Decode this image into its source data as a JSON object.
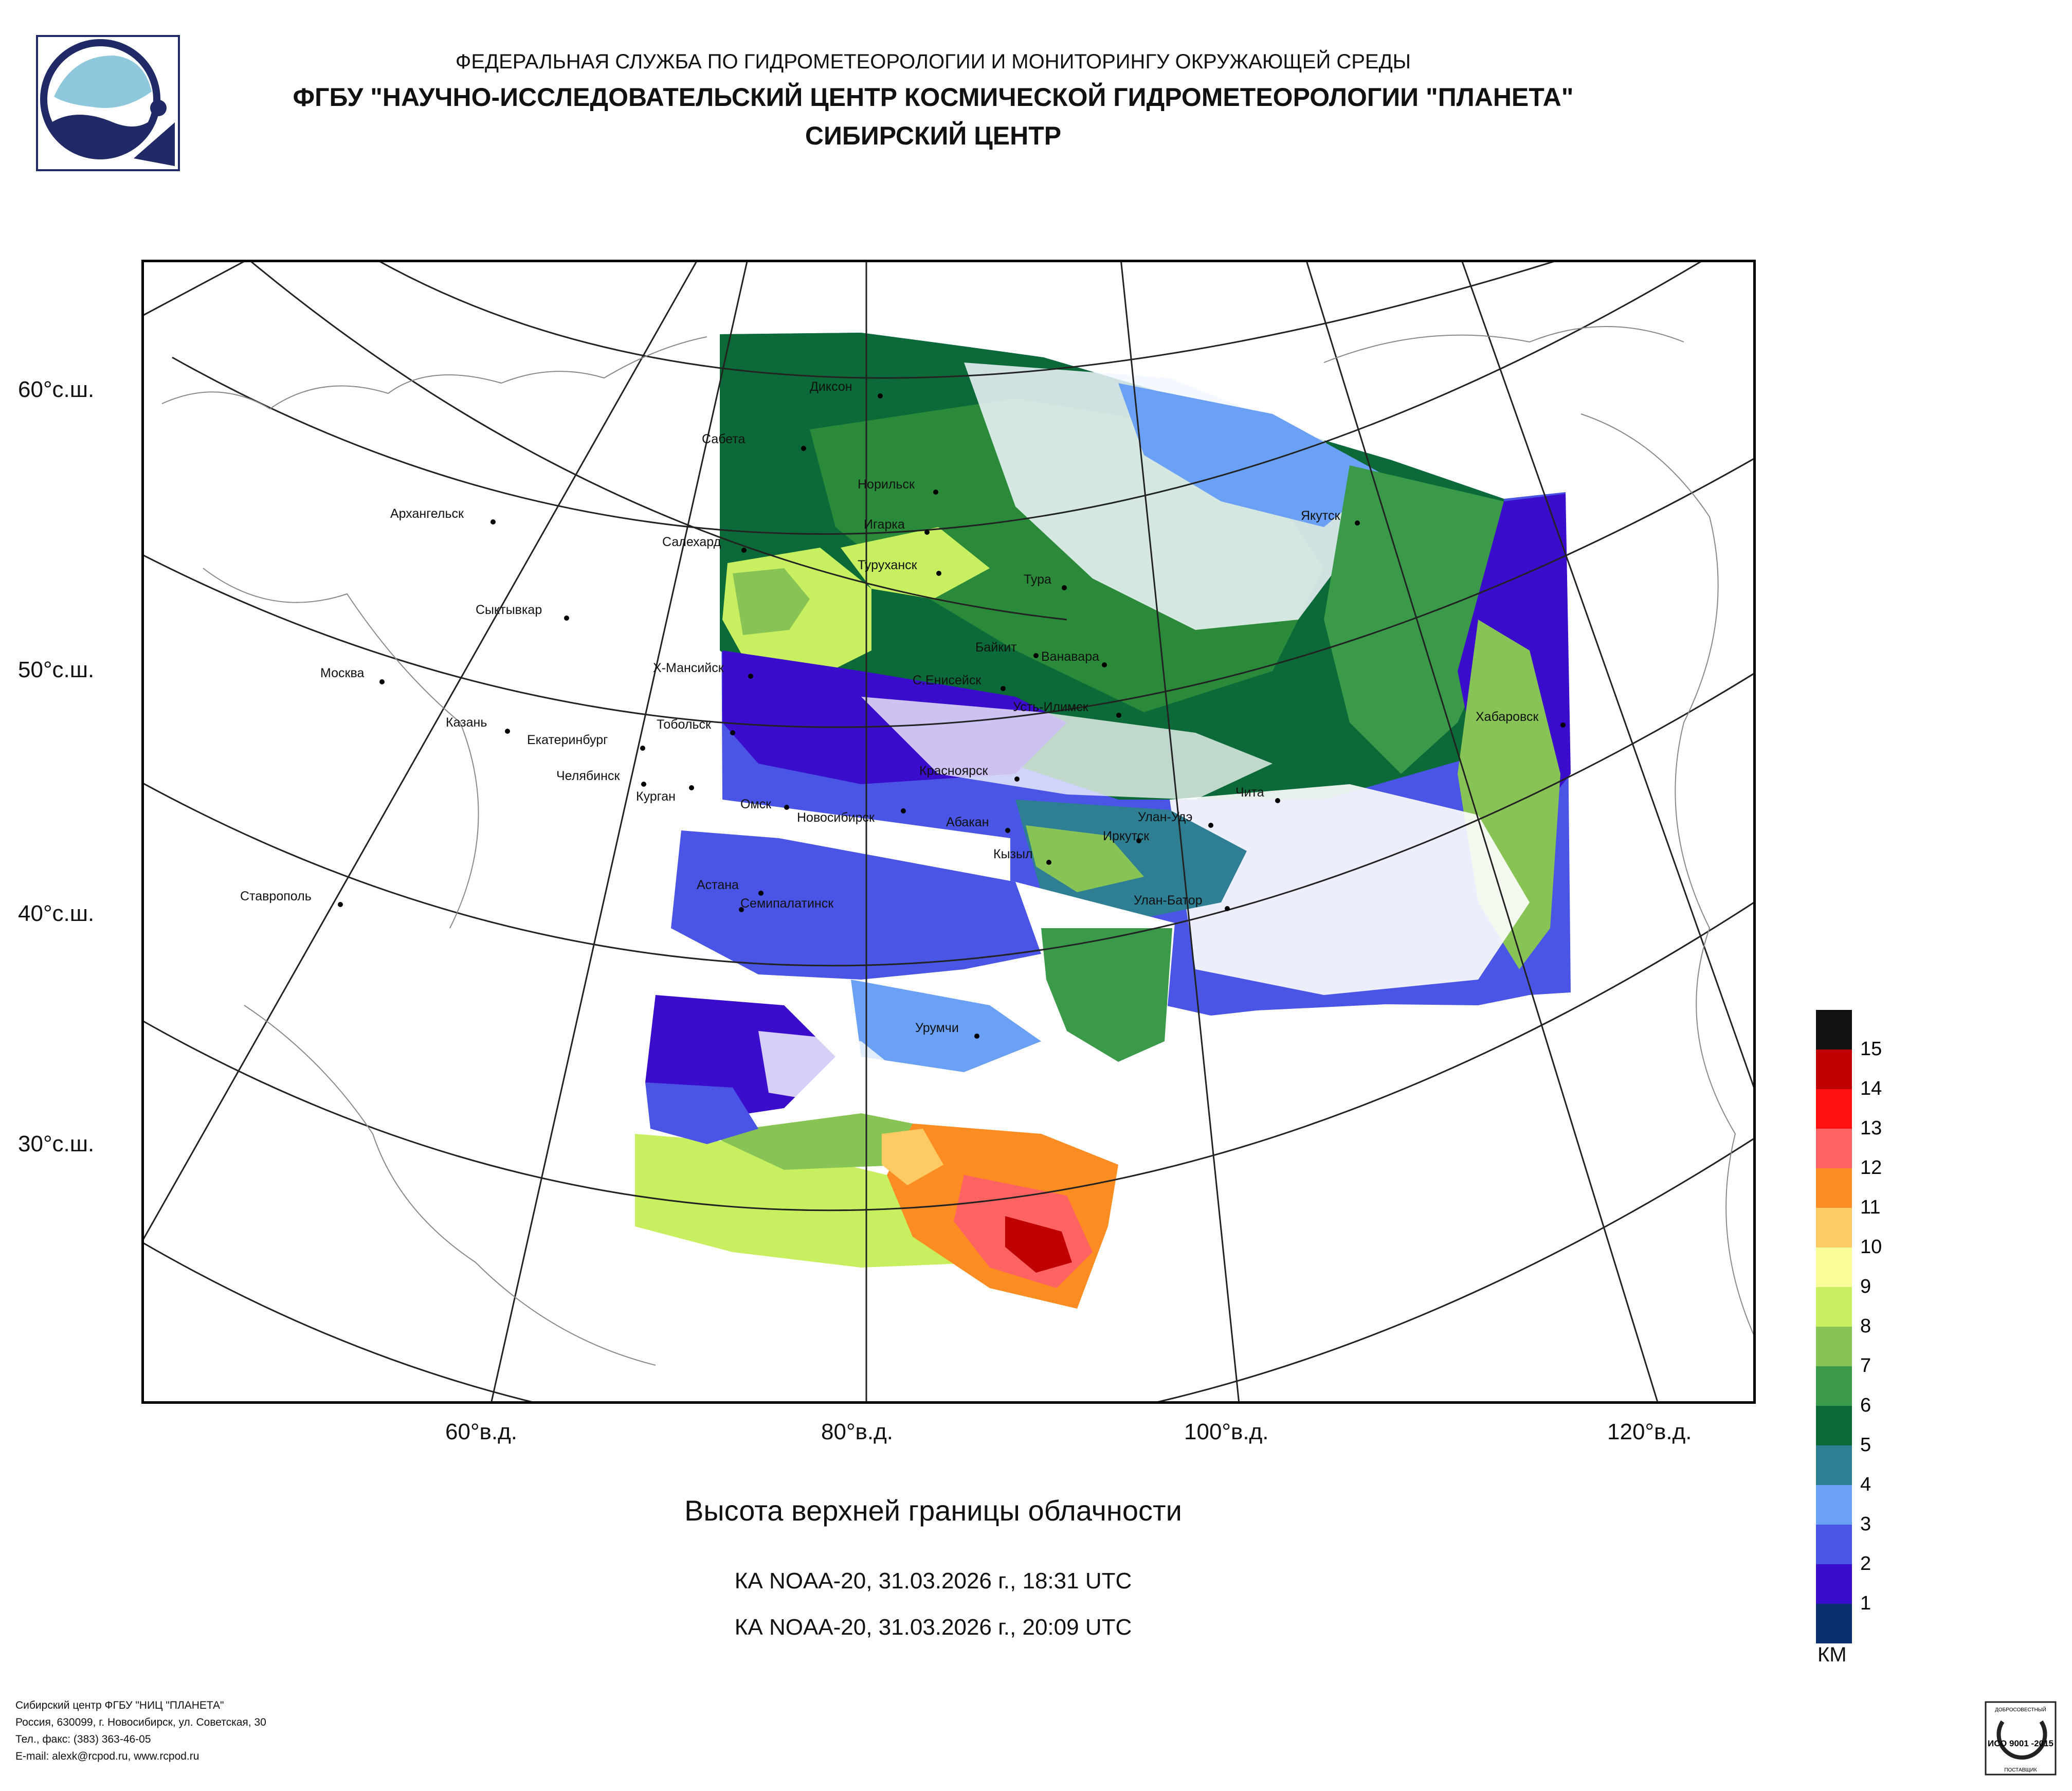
{
  "header": {
    "line1": "ФЕДЕРАЛЬНАЯ СЛУЖБА ПО ГИДРОМЕТЕОРОЛОГИИ И МОНИТОРИНГУ ОКРУЖАЮЩЕЙ СРЕДЫ",
    "line2": "ФГБУ \"НАУЧНО-ИССЛЕДОВАТЕЛЬСКИЙ ЦЕНТР КОСМИЧЕСКОЙ ГИДРОМЕТЕОРОЛОГИИ \"ПЛАНЕТА\"",
    "line3": "СИБИРСКИЙ ЦЕНТР"
  },
  "map": {
    "lat_labels": [
      "60°с.ш.",
      "50°с.ш.",
      "40°с.ш.",
      "30°с.ш."
    ],
    "lon_labels": [
      "60°в.д.",
      "80°в.д.",
      "100°в.д.",
      "120°в.д."
    ],
    "cities": [
      "Диксон",
      "Сабета",
      "Норильск",
      "Игарка",
      "Салехард",
      "Туруханск",
      "Тура",
      "Якутск",
      "Архангельск",
      "Сыктывкар",
      "Москва",
      "Х-Мансийск",
      "Байкит",
      "Ванавара",
      "С.Енисейск",
      "Усть-Илимск",
      "Казань",
      "Екатеринбург",
      "Тобольск",
      "Хабаровск",
      "Челябинск",
      "Курган",
      "Красноярск",
      "Чита",
      "Омск",
      "Новосибирск",
      "Абакан",
      "Улан-Удэ",
      "Иркутск",
      "Кызыл",
      "Астана",
      "Ставрополь",
      "Семипалатинск",
      "Улан-Батор",
      "Урумчи"
    ]
  },
  "product": {
    "title": "Высота верхней границы облачности",
    "pass1": "КА NOAA-20, 31.03.2026 г., 18:31 UTC",
    "pass2": "КА NOAA-20, 31.03.2026 г., 20:09 UTC"
  },
  "legend": {
    "unit": "КМ",
    "levels": [
      "1",
      "2",
      "3",
      "4",
      "5",
      "6",
      "7",
      "8",
      "9",
      "10",
      "11",
      "12",
      "13",
      "14",
      "15"
    ],
    "colors": [
      "#0b2e6e",
      "#3a0ccc",
      "#4a55e6",
      "#6aa0f5",
      "#2e7f93",
      "#0b6a38",
      "#3a9a4a",
      "#88c455",
      "#c8ef60",
      "#fbfc9a",
      "#fdca66",
      "#fd8c22",
      "#ff6262",
      "#ff1010",
      "#c00000",
      "#111111"
    ]
  },
  "footer": {
    "line1": "Сибирский центр ФГБУ \"НИЦ \"ПЛАНЕТА\"",
    "line2": "Россия, 630099, г. Новосибирск, ул. Советская, 30",
    "line3": "Тел., факс: (383) 363-46-05",
    "line4": "E-mail: alexk@rcpod.ru, www.rcpod.ru"
  },
  "certificate": {
    "top_text": "ДОБРОСОВЕСТНЫЙ",
    "mark": "ИСО 9001 -2015",
    "bottom_text": "ПОСТАВЩИК"
  }
}
